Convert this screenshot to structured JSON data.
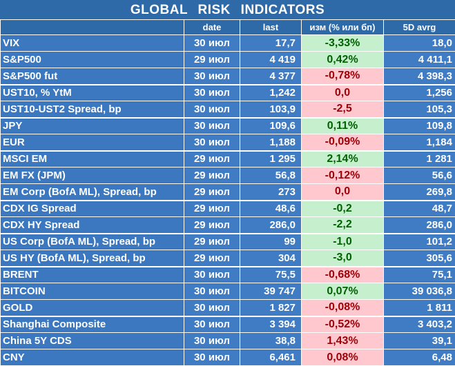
{
  "title": "GLOBAL  RISK  INDICATORS",
  "headers": {
    "name": "",
    "date": "date",
    "last": "last",
    "chg": "изм (% или бп)",
    "avg": "5D avrg"
  },
  "colors": {
    "header_bg": "#2f6aa8",
    "row_bg": "#3b78c0",
    "positive_bg": "#c6efce",
    "positive_text": "#006100",
    "negative_bg": "#ffc7ce",
    "negative_text": "#9c0006"
  },
  "rows": [
    {
      "name": "VIX",
      "date": "30 июл",
      "last": "17,7",
      "chg": "-3,33%",
      "avg": "18,0",
      "tone": "pos"
    },
    {
      "name": "S&P500",
      "date": "29 июл",
      "last": "4 419",
      "chg": "0,42%",
      "avg": "4 411,1",
      "tone": "pos"
    },
    {
      "name": "S&P500 fut",
      "date": "30 июл",
      "last": "4 377",
      "chg": "-0,78%",
      "avg": "4 398,3",
      "tone": "neg"
    },
    {
      "name": "UST10, % YtM",
      "date": "30 июл",
      "last": "1,242",
      "chg": "0,0",
      "avg": "1,256",
      "tone": "neg"
    },
    {
      "name": "UST10-UST2 Spread, bp",
      "date": "30 июл",
      "last": "103,9",
      "chg": "-2,5",
      "avg": "105,3",
      "tone": "neg"
    },
    {
      "name": "JPY",
      "date": "30 июл",
      "last": "109,6",
      "chg": "0,11%",
      "avg": "109,8",
      "tone": "pos"
    },
    {
      "name": "EUR",
      "date": "30 июл",
      "last": "1,188",
      "chg": "-0,09%",
      "avg": "1,184",
      "tone": "neg"
    },
    {
      "name": "MSCI EM",
      "date": "29 июл",
      "last": "1 295",
      "chg": "2,14%",
      "avg": "1 281",
      "tone": "pos"
    },
    {
      "name": "EM FX (JPM)",
      "date": "29 июл",
      "last": "56,8",
      "chg": "-0,12%",
      "avg": "56,6",
      "tone": "neg"
    },
    {
      "name": "EM Corp (BofA ML), Spread, bp",
      "date": "29 июл",
      "last": "273",
      "chg": "0,0",
      "avg": "269,8",
      "tone": "neg"
    },
    {
      "name": "CDX IG Spread",
      "date": "29 июл",
      "last": "48,6",
      "chg": "-0,2",
      "avg": "48,7",
      "tone": "pos"
    },
    {
      "name": "CDX HY Spread",
      "date": "29 июл",
      "last": "286,0",
      "chg": "-2,2",
      "avg": "286,0",
      "tone": "pos"
    },
    {
      "name": "US Corp (BofA ML), Spread, bp",
      "date": "29 июл",
      "last": "99",
      "chg": "-1,0",
      "avg": "101,2",
      "tone": "pos"
    },
    {
      "name": "US HY (BofA ML), Spread, bp",
      "date": "29 июл",
      "last": "304",
      "chg": "-3,0",
      "avg": "305,6",
      "tone": "pos"
    },
    {
      "name": "BRENT",
      "date": "30 июл",
      "last": "75,5",
      "chg": "-0,68%",
      "avg": "75,1",
      "tone": "neg"
    },
    {
      "name": "BITCOIN",
      "date": "30 июл",
      "last": "39 747",
      "chg": "0,07%",
      "avg": "39 036,8",
      "tone": "pos"
    },
    {
      "name": "GOLD",
      "date": "30 июл",
      "last": "1 827",
      "chg": "-0,08%",
      "avg": "1 811",
      "tone": "neg"
    },
    {
      "name": "Shanghai Composite",
      "date": "30 июл",
      "last": "3 394",
      "chg": "-0,52%",
      "avg": "3 403,2",
      "tone": "neg"
    },
    {
      "name": "China 5Y CDS",
      "date": "30 июл",
      "last": "38,8",
      "chg": "1,43%",
      "avg": "39,1",
      "tone": "neg"
    },
    {
      "name": "CNY",
      "date": "30 июл",
      "last": "6,461",
      "chg": "0,08%",
      "avg": "6,48",
      "tone": "neg"
    }
  ]
}
